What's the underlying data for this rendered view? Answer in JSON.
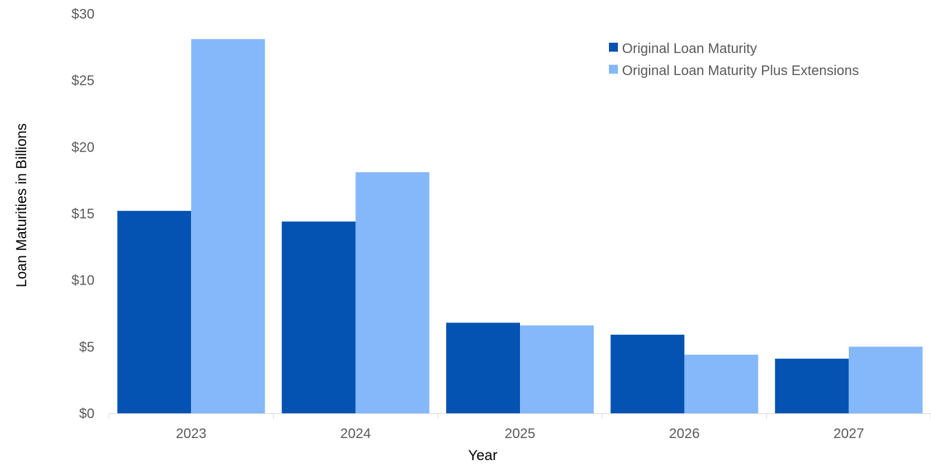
{
  "chart_data": {
    "type": "bar",
    "title": "",
    "xlabel": "Year",
    "ylabel": "Loan Maturities in Billions",
    "categories": [
      "2023",
      "2024",
      "2025",
      "2026",
      "2027"
    ],
    "series": [
      {
        "name": "Original Loan Maturity",
        "color": "#0452B2",
        "values": [
          15.2,
          14.4,
          6.8,
          5.9,
          4.1
        ]
      },
      {
        "name": "Original Loan Maturity Plus Extensions",
        "color": "#84B8FA",
        "values": [
          28.1,
          18.1,
          6.6,
          4.4,
          5.0
        ]
      }
    ],
    "ylim": [
      0,
      30
    ],
    "yticks": [
      0,
      5,
      10,
      15,
      20,
      25,
      30
    ],
    "ytick_labels": [
      "$0",
      "$5",
      "$10",
      "$15",
      "$20",
      "$25",
      "$30"
    ],
    "grid": false,
    "legend_position": "top-right"
  }
}
